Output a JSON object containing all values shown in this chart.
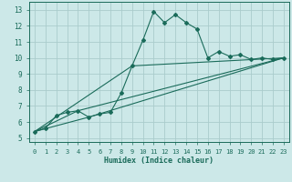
{
  "title": "",
  "xlabel": "Humidex (Indice chaleur)",
  "ylabel": "",
  "xlim": [
    -0.5,
    23.5
  ],
  "ylim": [
    4.75,
    13.5
  ],
  "xticks": [
    0,
    1,
    2,
    3,
    4,
    5,
    6,
    7,
    8,
    9,
    10,
    11,
    12,
    13,
    14,
    15,
    16,
    17,
    18,
    19,
    20,
    21,
    22,
    23
  ],
  "yticks": [
    5,
    6,
    7,
    8,
    9,
    10,
    11,
    12,
    13
  ],
  "bg_color": "#cce8e8",
  "grid_color": "#aacccc",
  "line_color": "#1a6b5a",
  "line1_x": [
    0,
    1,
    2,
    3,
    4,
    5,
    6,
    7,
    8,
    9,
    10,
    11,
    12,
    13,
    14,
    15,
    16,
    17,
    18,
    19,
    20,
    21,
    22,
    23
  ],
  "line1_y": [
    5.4,
    5.6,
    6.4,
    6.6,
    6.7,
    6.3,
    6.5,
    6.6,
    7.8,
    9.5,
    11.1,
    12.9,
    12.2,
    12.7,
    12.2,
    11.8,
    10.0,
    10.4,
    10.1,
    10.2,
    9.9,
    10.0,
    9.9,
    10.0
  ],
  "line2_x": [
    0,
    4,
    23
  ],
  "line2_y": [
    5.4,
    6.7,
    10.0
  ],
  "line3_x": [
    0,
    5,
    23
  ],
  "line3_y": [
    5.4,
    6.3,
    10.0
  ],
  "line4_x": [
    0,
    9,
    23
  ],
  "line4_y": [
    5.4,
    9.5,
    10.0
  ]
}
